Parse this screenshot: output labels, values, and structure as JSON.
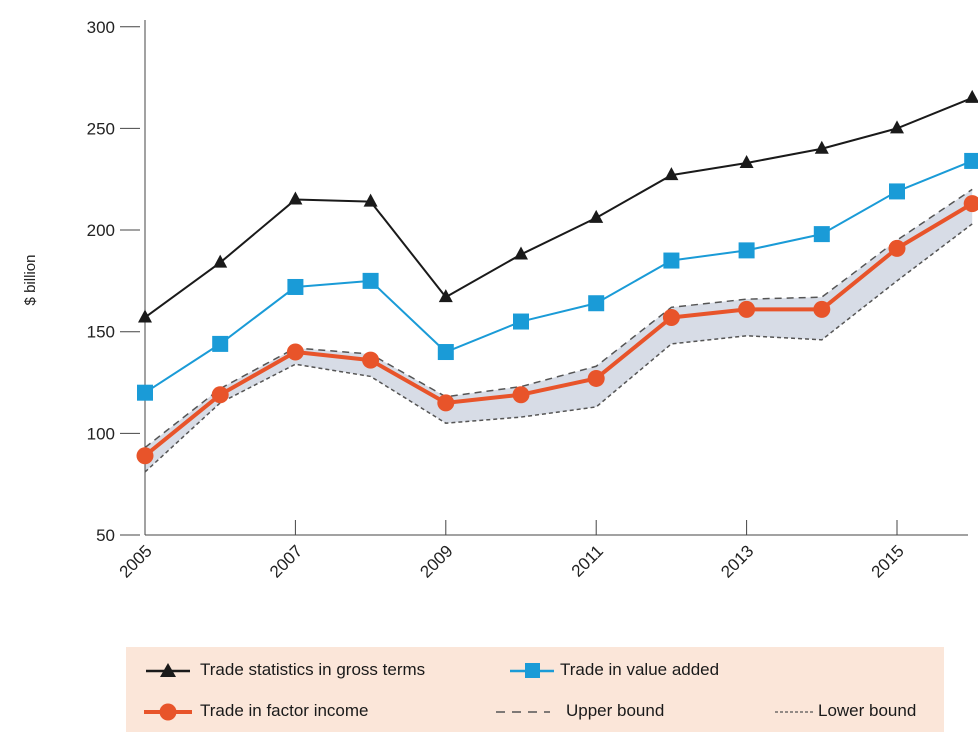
{
  "chart_data": {
    "type": "line",
    "ylabel": "$ billion",
    "xlabel": "",
    "ylim": [
      50,
      300
    ],
    "yticks": [
      50,
      100,
      150,
      200,
      250,
      300
    ],
    "x": [
      2005,
      2006,
      2007,
      2008,
      2009,
      2010,
      2011,
      2012,
      2013,
      2014,
      2015,
      2016
    ],
    "xtick_labels": [
      "2005",
      "2007",
      "2009",
      "2011",
      "2013",
      "2015"
    ],
    "series": [
      {
        "name": "Trade statistics in gross terms",
        "color": "#1a1a1a",
        "marker": "triangle",
        "values": [
          157,
          184,
          215,
          214,
          167,
          188,
          206,
          227,
          233,
          240,
          250,
          265
        ]
      },
      {
        "name": "Trade in value added",
        "color": "#1a9bd7",
        "marker": "square",
        "values": [
          120,
          144,
          172,
          175,
          140,
          155,
          164,
          185,
          190,
          198,
          219,
          234
        ]
      },
      {
        "name": "Trade in factor income",
        "color": "#e8542a",
        "marker": "circle",
        "values": [
          89,
          119,
          140,
          136,
          115,
          119,
          127,
          157,
          161,
          161,
          191,
          213
        ]
      },
      {
        "name": "Upper bound",
        "color": "#555555",
        "style": "dashed",
        "values": [
          93,
          122,
          142,
          139,
          118,
          123,
          133,
          162,
          166,
          167,
          195,
          220
        ]
      },
      {
        "name": "Lower bound",
        "color": "#555555",
        "style": "dotted",
        "values": [
          81,
          115,
          134,
          128,
          105,
          108,
          113,
          144,
          148,
          146,
          175,
          203
        ]
      }
    ],
    "band_color": "#d7dce6",
    "grid": false,
    "legend_placement": "bottom"
  },
  "legend": {
    "items": [
      {
        "label": "Trade statistics in gross terms"
      },
      {
        "label": "Trade in value added"
      },
      {
        "label": "Trade in factor income"
      },
      {
        "label": "Upper bound"
      },
      {
        "label": "Lower bound"
      }
    ]
  }
}
